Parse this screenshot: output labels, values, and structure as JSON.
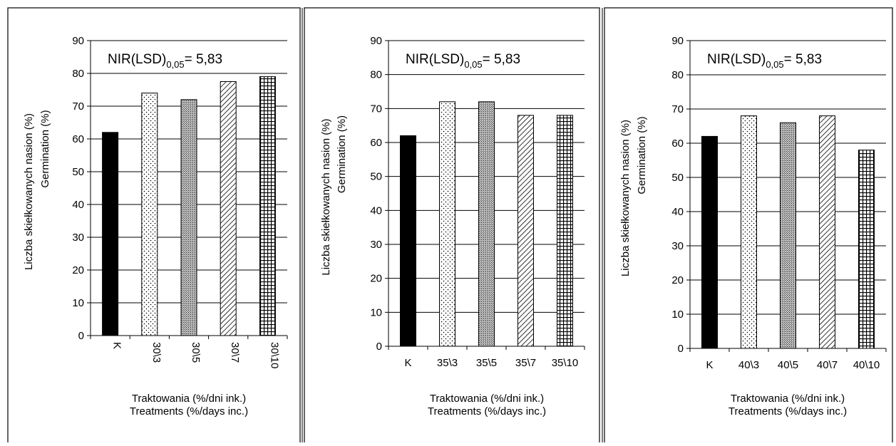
{
  "colors": {
    "bar_outline": "#000000",
    "K_fill": "#000000",
    "grid": "#000000",
    "background": "#ffffff"
  },
  "patterns": [
    "solid",
    "dots",
    "crosshatch-dense",
    "diagonal-lines",
    "grid-squares"
  ],
  "chart_data": [
    {
      "type": "bar",
      "annotation": {
        "main": "NIR(LSD)",
        "sub": "0,05",
        "value": "= 5,83"
      },
      "ylabel": [
        "Liczba skiełkowanych nasion (%)",
        "Germination (%)"
      ],
      "xlabel": [
        "Traktowania (%/dni ink.)",
        "Treatments (%/days inc.)"
      ],
      "ylim": [
        0,
        90
      ],
      "yticks": [
        "0",
        "10",
        "20",
        "30",
        "40",
        "50",
        "60",
        "70",
        "80",
        "90"
      ],
      "categories": [
        "K",
        "30\\3",
        "30\\5",
        "30\\7",
        "30\\10"
      ],
      "x_label_rotation": "vertical",
      "values": [
        62,
        74,
        72,
        77.5,
        79
      ],
      "grid": true
    },
    {
      "type": "bar",
      "annotation": {
        "main": "NIR(LSD)",
        "sub": "0,05",
        "value": "= 5,83"
      },
      "ylabel": [
        "Liczba skiełkowanych nasion (%)",
        "Germination (%)"
      ],
      "xlabel": [
        "Traktowania (%/dni ink.)",
        "Treatments (%/days inc.)"
      ],
      "ylim": [
        0,
        90
      ],
      "yticks": [
        "0",
        "10",
        "20",
        "30",
        "40",
        "50",
        "60",
        "70",
        "80",
        "90"
      ],
      "categories": [
        "K",
        "35\\3",
        "35\\5",
        "35\\7",
        "35\\10"
      ],
      "x_label_rotation": "horizontal",
      "values": [
        62,
        72,
        72,
        68,
        68
      ],
      "grid": true
    },
    {
      "type": "bar",
      "annotation": {
        "main": "NIR(LSD)",
        "sub": "0,05",
        "value": "= 5,83"
      },
      "ylabel": [
        "Liczba skiełkowanych nasion (%)",
        "Germination (%)"
      ],
      "xlabel": [
        "Traktowania (%/dni ink.)",
        "Treatments (%/days inc.)"
      ],
      "ylim": [
        0,
        90
      ],
      "yticks": [
        "0",
        "10",
        "20",
        "30",
        "40",
        "50",
        "60",
        "70",
        "80",
        "90"
      ],
      "categories": [
        "K",
        "40\\3",
        "40\\5",
        "40\\7",
        "40\\10"
      ],
      "x_label_rotation": "horizontal",
      "values": [
        62,
        68,
        66,
        68,
        58
      ],
      "grid": true
    }
  ]
}
